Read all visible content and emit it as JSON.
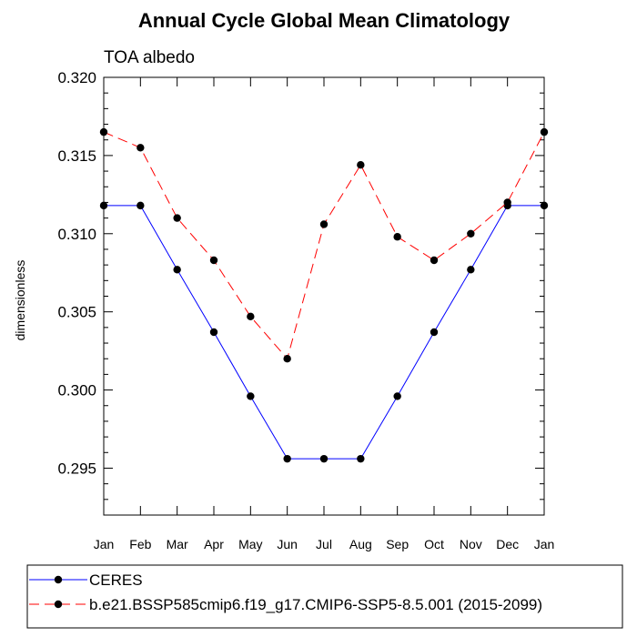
{
  "chart_data": {
    "type": "line",
    "title": "Annual Cycle Global Mean Climatology",
    "subtitle": "TOA albedo",
    "xlabel": "",
    "ylabel": "dimensionless",
    "categories": [
      "Jan",
      "Feb",
      "Mar",
      "Apr",
      "May",
      "Jun",
      "Jul",
      "Aug",
      "Sep",
      "Oct",
      "Nov",
      "Dec",
      "Jan"
    ],
    "ylim": [
      0.292,
      0.32
    ],
    "yticks": [
      0.295,
      0.3,
      0.305,
      0.31,
      0.315,
      0.32
    ],
    "ytick_labels": [
      "0.295",
      "0.300",
      "0.305",
      "0.310",
      "0.315",
      "0.320"
    ],
    "grid": false,
    "legend_position": "bottom-left",
    "series": [
      {
        "name": "CERES",
        "color": "#0000ff",
        "dashed": false,
        "values": [
          0.3118,
          0.3118,
          0.3077,
          0.3037,
          0.2996,
          0.2956,
          0.2956,
          0.2956,
          0.2996,
          0.3037,
          0.3077,
          0.3118,
          0.3118
        ]
      },
      {
        "name": "b.e21.BSSP585cmip6.f19_g17.CMIP6-SSP5-8.5.001 (2015-2099)",
        "color": "#ff0000",
        "dashed": true,
        "values": [
          0.3165,
          0.3155,
          0.311,
          0.3083,
          0.3047,
          0.302,
          0.3106,
          0.3144,
          0.3098,
          0.3083,
          0.31,
          0.312,
          0.3165
        ]
      }
    ]
  }
}
